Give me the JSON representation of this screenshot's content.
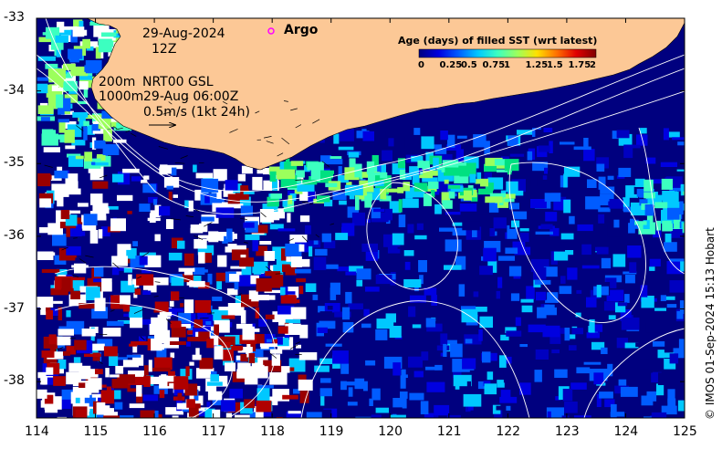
{
  "map": {
    "date_line": "29-Aug-2024",
    "time_line": "12Z",
    "depth_200": "200m",
    "depth_1000": "1000m",
    "product": "NRT00 GSL",
    "product_time": "29-Aug 06:00Z",
    "vector_scale_label": "0.5m/s (1kt 24h)",
    "argo_label": "Argo",
    "credit": "© IMOS 01-Sep-2024 15:13 Hobart",
    "colorbar": {
      "title": "Age (days) of filled SST (wrt latest)",
      "ticks": [
        "0",
        "0.25",
        "0.5",
        "0.75",
        "1",
        "1.25",
        "1.5",
        "1.75",
        "2"
      ],
      "range": [
        0,
        2
      ],
      "colors": [
        "#00007f",
        "#0000e0",
        "#005cff",
        "#00c8ff",
        "#3cffc0",
        "#9cff5c",
        "#ffe000",
        "#ff7000",
        "#e00000",
        "#7f0000"
      ]
    },
    "x_ticks": [
      "114",
      "115",
      "116",
      "117",
      "118",
      "119",
      "120",
      "121",
      "122",
      "123",
      "124",
      "125"
    ],
    "y_ticks": [
      "-33",
      "-34",
      "-35",
      "-36",
      "-37",
      "-38"
    ],
    "lon_range": [
      114,
      125
    ],
    "lat_range": [
      -38.5,
      -33
    ],
    "land_color": "#fcc896",
    "ocean_color": "#00007f"
  }
}
